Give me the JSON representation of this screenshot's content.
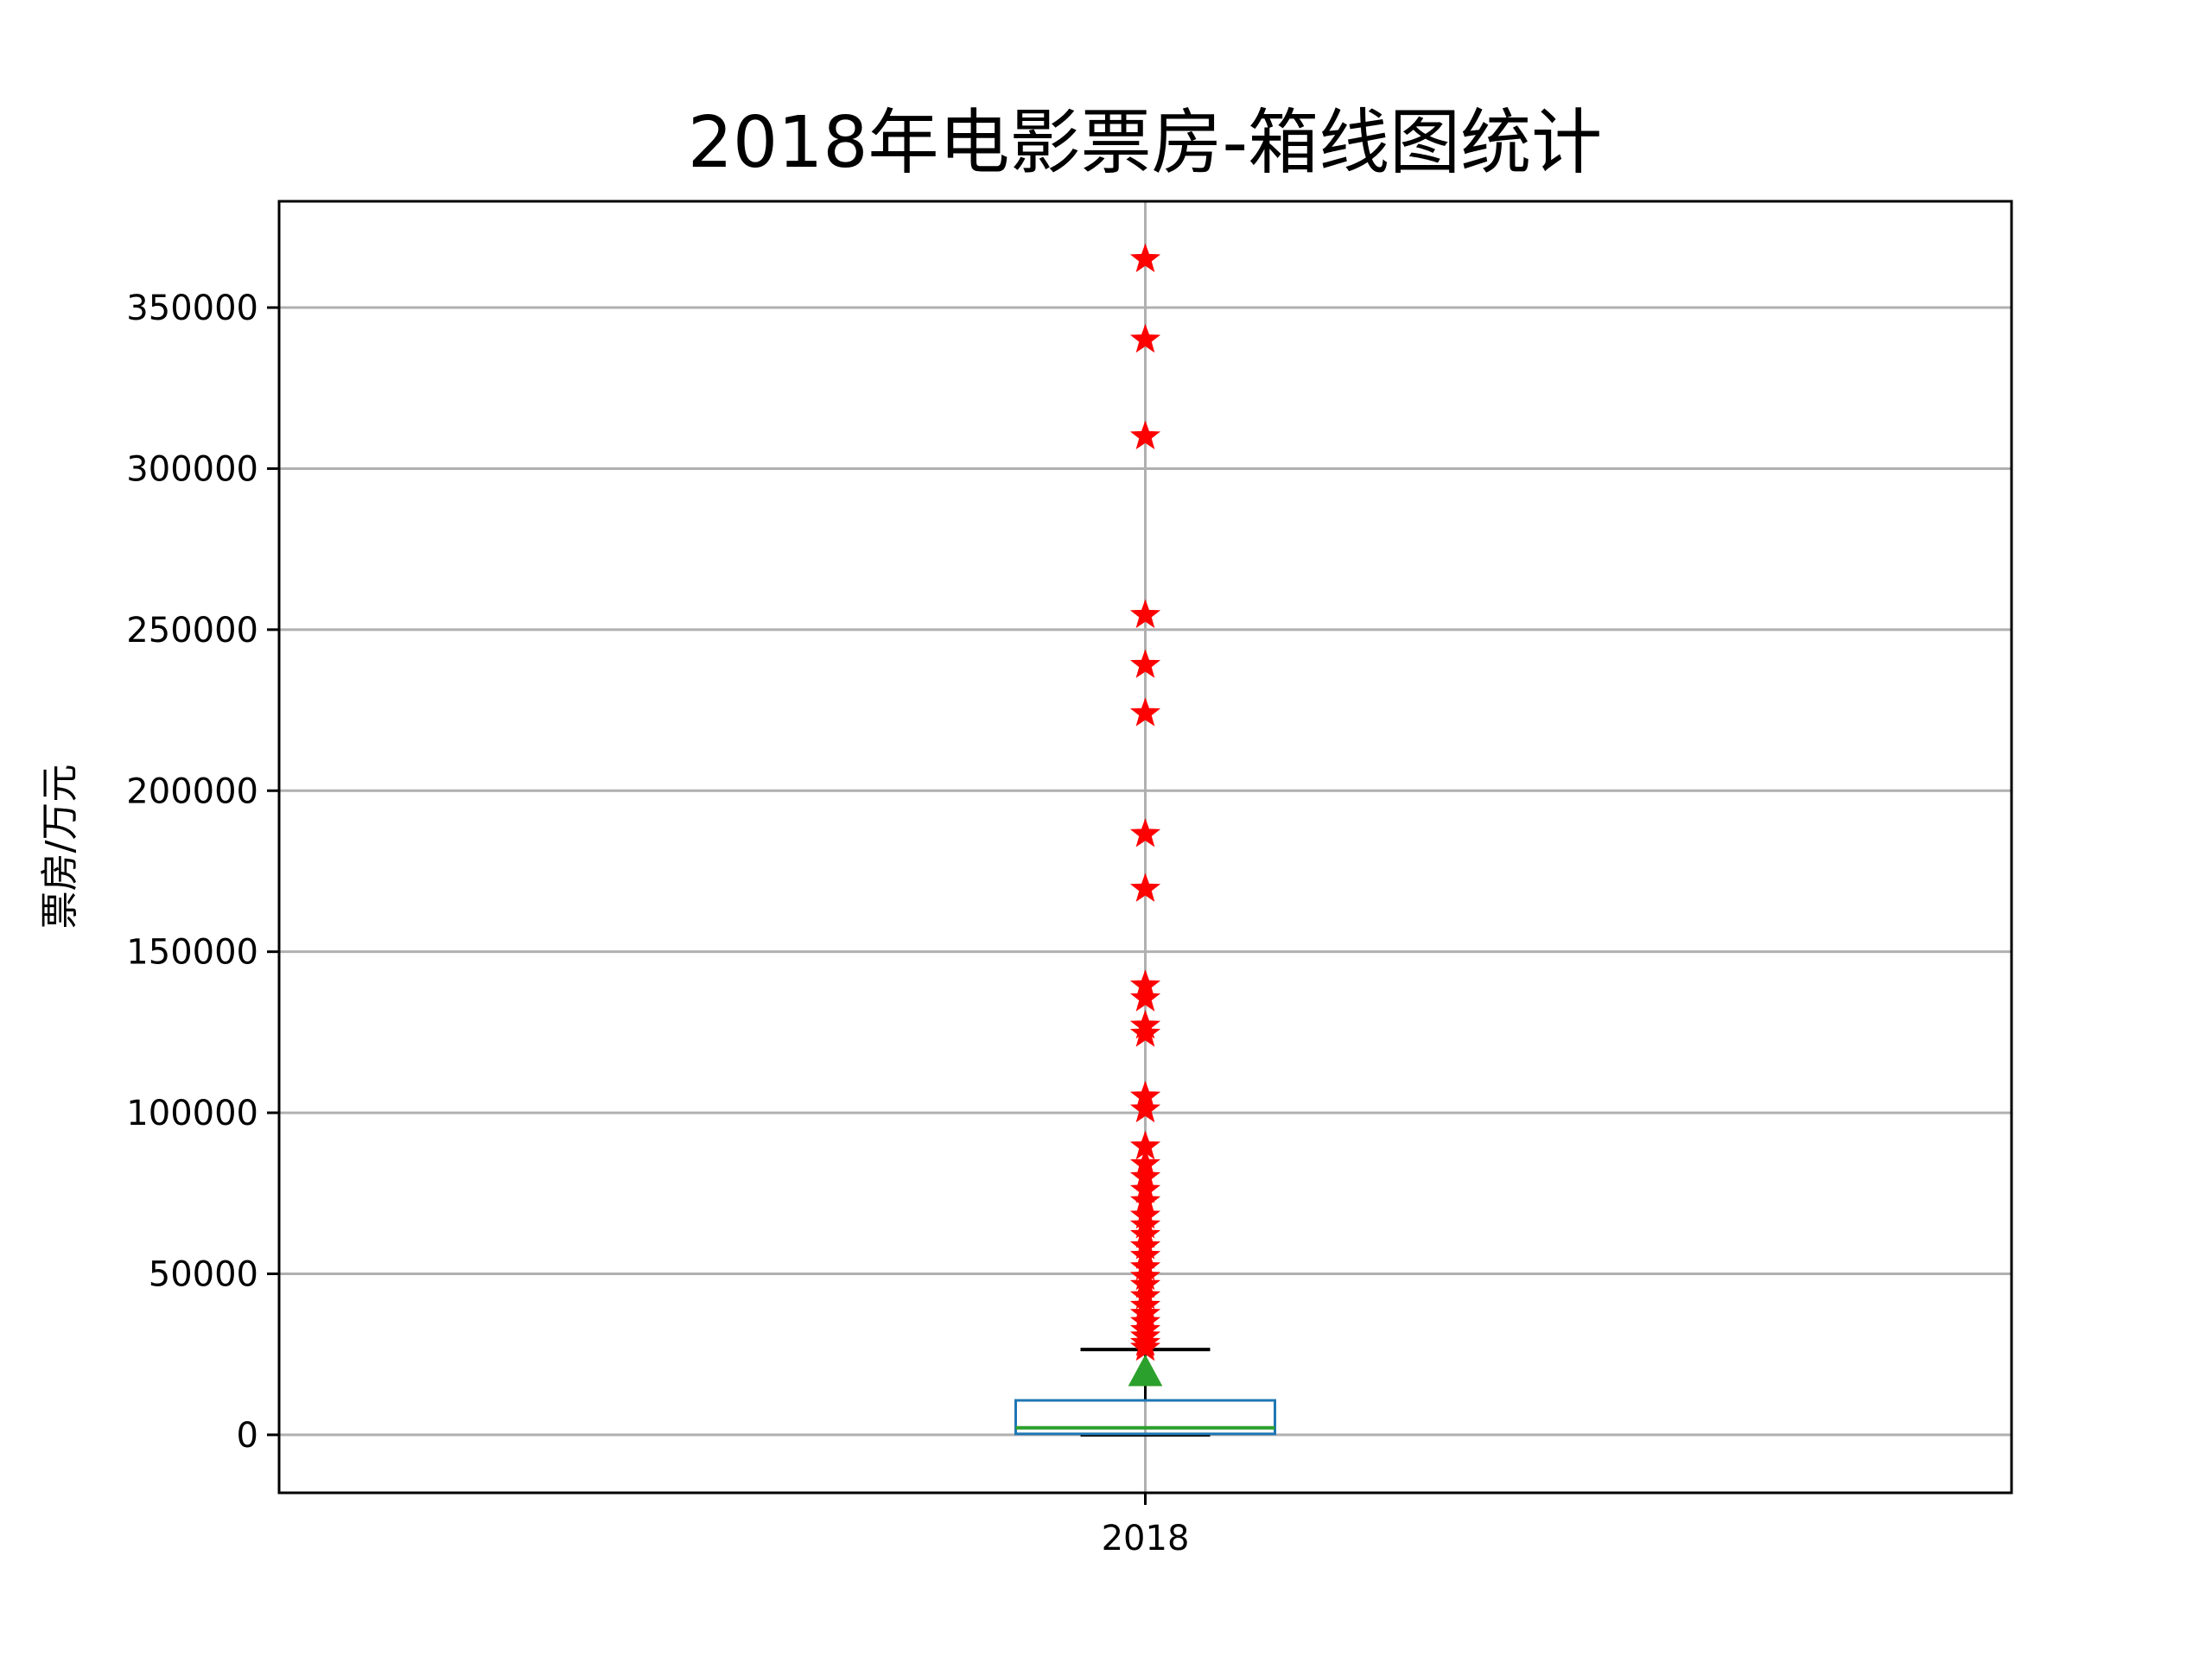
{
  "chart_data": {
    "type": "box",
    "title": "2018年电影票房-箱线图统计",
    "xlabel": "",
    "ylabel": "票房/万元",
    "categories": [
      "2018"
    ],
    "ylim": [
      -18000,
      383000
    ],
    "yticks": [
      0,
      50000,
      100000,
      150000,
      200000,
      250000,
      300000,
      350000
    ],
    "ytick_labels": [
      "0",
      "50000",
      "100000",
      "150000",
      "200000",
      "250000",
      "300000",
      "350000"
    ],
    "grid": true,
    "box": {
      "category": "2018",
      "whisker_low": 0,
      "q1": 300,
      "median": 2200,
      "q3": 10700,
      "whisker_high": 26500,
      "mean": 19300,
      "outliers": [
        365000,
        340000,
        310000,
        254500,
        239000,
        224000,
        186500,
        169500,
        139500,
        135500,
        127000,
        124500,
        105000,
        101000,
        89500,
        84000,
        80000,
        76000,
        72500,
        68000,
        65000,
        62000,
        58500,
        55500,
        52000,
        49000,
        46500,
        43000,
        40000,
        37500,
        35000,
        32500,
        30500,
        28500,
        27000
      ]
    },
    "colors": {
      "box": "#1f77b4",
      "median": "#2ca02c",
      "mean": "#2ca02c",
      "whisker": "#000000",
      "outlier": "#ff0000",
      "grid": "#b0b0b0"
    }
  }
}
